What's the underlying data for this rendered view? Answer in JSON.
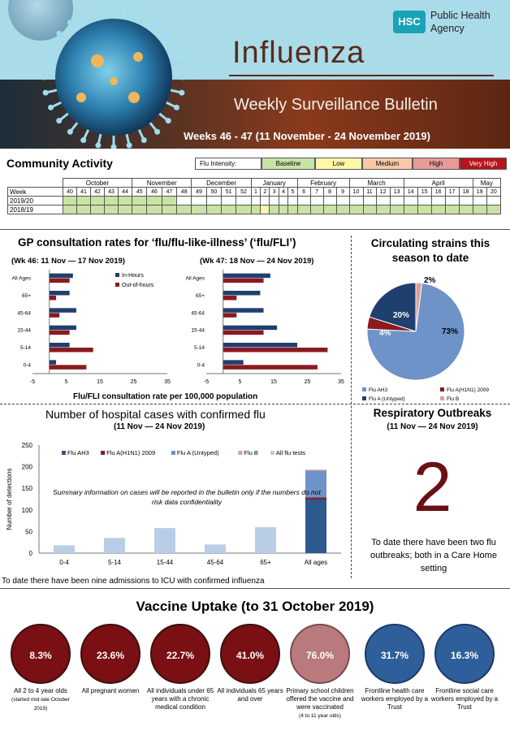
{
  "header": {
    "title": "Influenza",
    "subtitle": "Weekly Surveillance Bulletin",
    "weeks": "Weeks 46 - 47 (11 November - 24 November 2019)",
    "logo_text": "HSC",
    "org_line1": "Public Health",
    "org_line2": "Agency"
  },
  "community": {
    "title": "Community Activity",
    "legend_label": "Flu Intensity:",
    "legend": [
      {
        "label": "Baseline",
        "color": "#c9e3a4",
        "text": "#000"
      },
      {
        "label": "Low",
        "color": "#fff7a8",
        "text": "#000"
      },
      {
        "label": "Medium",
        "color": "#f9c8a8",
        "text": "#000"
      },
      {
        "label": "High",
        "color": "#e79a96",
        "text": "#000"
      },
      {
        "label": "Very High",
        "color": "#b8141c",
        "text": "#fff"
      }
    ],
    "months": [
      "October",
      "November",
      "December",
      "January",
      "February",
      "March",
      "April",
      "May"
    ],
    "week_label": "Week",
    "weeks": [
      "40",
      "41",
      "42",
      "43",
      "44",
      "45",
      "46",
      "47",
      "48",
      "49",
      "50",
      "51",
      "52",
      "1",
      "2",
      "3",
      "4",
      "5",
      "6",
      "7",
      "8",
      "9",
      "10",
      "11",
      "12",
      "13",
      "14",
      "15",
      "16",
      "17",
      "18",
      "19",
      "20"
    ],
    "rows": [
      {
        "label": "2019/20",
        "colored_weeks": 8,
        "yellow": []
      },
      {
        "label": "2018/19",
        "colored_weeks": 33,
        "yellow": [
          14
        ]
      }
    ]
  },
  "gp": {
    "title": "GP consultation rates for ‘flu/flu-like-illness’ (‘flu/FLI’)",
    "wk46": "(Wk 46: 11 Nov — 17 Nov 2019)",
    "wk47": "(Wk 47: 18 Nov — 24 Nov 2019)",
    "xlabel": "Flu/FLI consultation rate per 100,000 population"
  },
  "strains": {
    "title": "Circulating strains this season to date",
    "legend": [
      "Flu AH3",
      "Flu A(H1N1) 2009",
      "Flu A (Untyped)",
      "Flu B"
    ]
  },
  "hospital": {
    "title": "Number of hospital cases with confirmed flu",
    "period": "(11 Nov — 24 Nov 2019)",
    "note": "Summary information on cases will be reported in the bulletin only if the numbers do not risk data confidentiality",
    "footer": "To date there have been nine admissions to ICU with confirmed influenza"
  },
  "resp": {
    "title": "Respiratory Outbreaks",
    "period": "(11 Nov — 24 Nov 2019)",
    "number": "2",
    "text": "To date there have been two flu outbreaks; both in a Care Home setting"
  },
  "vaccine": {
    "title": "Vaccine Uptake (to 31 October 2019)",
    "items": [
      {
        "value": "8.3%",
        "label": "All 2 to 4 year olds",
        "note": "(started mid-late October 2019)",
        "color": "#7a0f14"
      },
      {
        "value": "23.6%",
        "label": "All pregnant women",
        "note": "",
        "color": "#7a0f14"
      },
      {
        "value": "22.7%",
        "label": "All individuals under 65 years with a chronic medical condition",
        "note": "",
        "color": "#7a0f14"
      },
      {
        "value": "41.0%",
        "label": "All individuals 65 years and over",
        "note": "",
        "color": "#7a0f14"
      },
      {
        "value": "76.0%",
        "label": "Primary school children offered the vaccine and were vaccinated",
        "note": "(4 to 11 year olds)",
        "color": "#b87a7c"
      },
      {
        "value": "31.7%",
        "label": "Frontline health care workers employed by a Trust",
        "note": "",
        "color": "#2f5f9a"
      },
      {
        "value": "16.3%",
        "label": "Frontline social care workers employed by a Trust",
        "note": "",
        "color": "#2f5f9a"
      }
    ]
  },
  "chart_data": [
    {
      "type": "bar",
      "orientation": "horizontal",
      "title": "(Wk 46: 11 Nov — 17 Nov 2019)",
      "categories": [
        "All Ages",
        "65+",
        "45-64",
        "15-44",
        "5-14",
        "0-4"
      ],
      "series": [
        {
          "name": "In-Hours",
          "values": [
            7,
            6,
            8,
            8,
            6,
            2
          ],
          "color": "#1f3f6e"
        },
        {
          "name": "Out-of-hours",
          "values": [
            6,
            2,
            3,
            6,
            13,
            11
          ],
          "color": "#8b1a1f"
        }
      ],
      "xlim": [
        -5,
        35
      ],
      "xticks": [
        -5,
        5,
        15,
        25,
        35
      ]
    },
    {
      "type": "bar",
      "orientation": "horizontal",
      "title": "(Wk 47: 18 Nov — 24 Nov 2019)",
      "categories": [
        "All Ages",
        "65+",
        "45-64",
        "15-44",
        "5-14",
        "0-4"
      ],
      "series": [
        {
          "name": "In-Hours",
          "values": [
            14,
            11,
            12,
            16,
            22,
            6
          ],
          "color": "#1f3f6e"
        },
        {
          "name": "Out-of-hours",
          "values": [
            12,
            4,
            4,
            12,
            31,
            28
          ],
          "color": "#8b1a1f"
        }
      ],
      "xlim": [
        -5,
        35
      ],
      "xticks": [
        -5,
        5,
        15,
        25,
        35
      ]
    },
    {
      "type": "pie",
      "title": "Circulating strains this season to date",
      "categories": [
        "Flu AH3",
        "Flu A(H1N1) 2009",
        "Flu A (Untyped)",
        "Flu B"
      ],
      "values": [
        73,
        4,
        20,
        2
      ],
      "labels": [
        "73%",
        "4%",
        "20%",
        "2%"
      ],
      "colors": [
        "#6d93c8",
        "#8b1a1f",
        "#1f3f6e",
        "#d9a09c"
      ]
    },
    {
      "type": "bar",
      "title": "Number of hospital cases with confirmed flu",
      "categories": [
        "0-4",
        "5-14",
        "15-44",
        "45-64",
        "65+",
        "All ages"
      ],
      "ylabel": "Number of detections",
      "ylim": [
        0,
        250
      ],
      "yticks": [
        0,
        50,
        100,
        150,
        200,
        250
      ],
      "series": [
        {
          "name": "Flu AH3",
          "values": [
            0,
            0,
            0,
            0,
            0,
            125
          ],
          "color": "#2d5a8c"
        },
        {
          "name": "Flu A(H1N1) 2009",
          "values": [
            0,
            0,
            0,
            0,
            0,
            4
          ],
          "color": "#8b1a1f"
        },
        {
          "name": "Flu A (Untyped)",
          "values": [
            0,
            0,
            0,
            0,
            0,
            62
          ],
          "color": "#6d93c8"
        },
        {
          "name": "Flu B",
          "values": [
            0,
            0,
            0,
            0,
            0,
            2
          ],
          "color": "#d9a09c"
        },
        {
          "name": "All flu tests",
          "values": [
            18,
            35,
            58,
            20,
            60,
            0
          ],
          "color": "#b9cde6"
        }
      ]
    }
  ]
}
